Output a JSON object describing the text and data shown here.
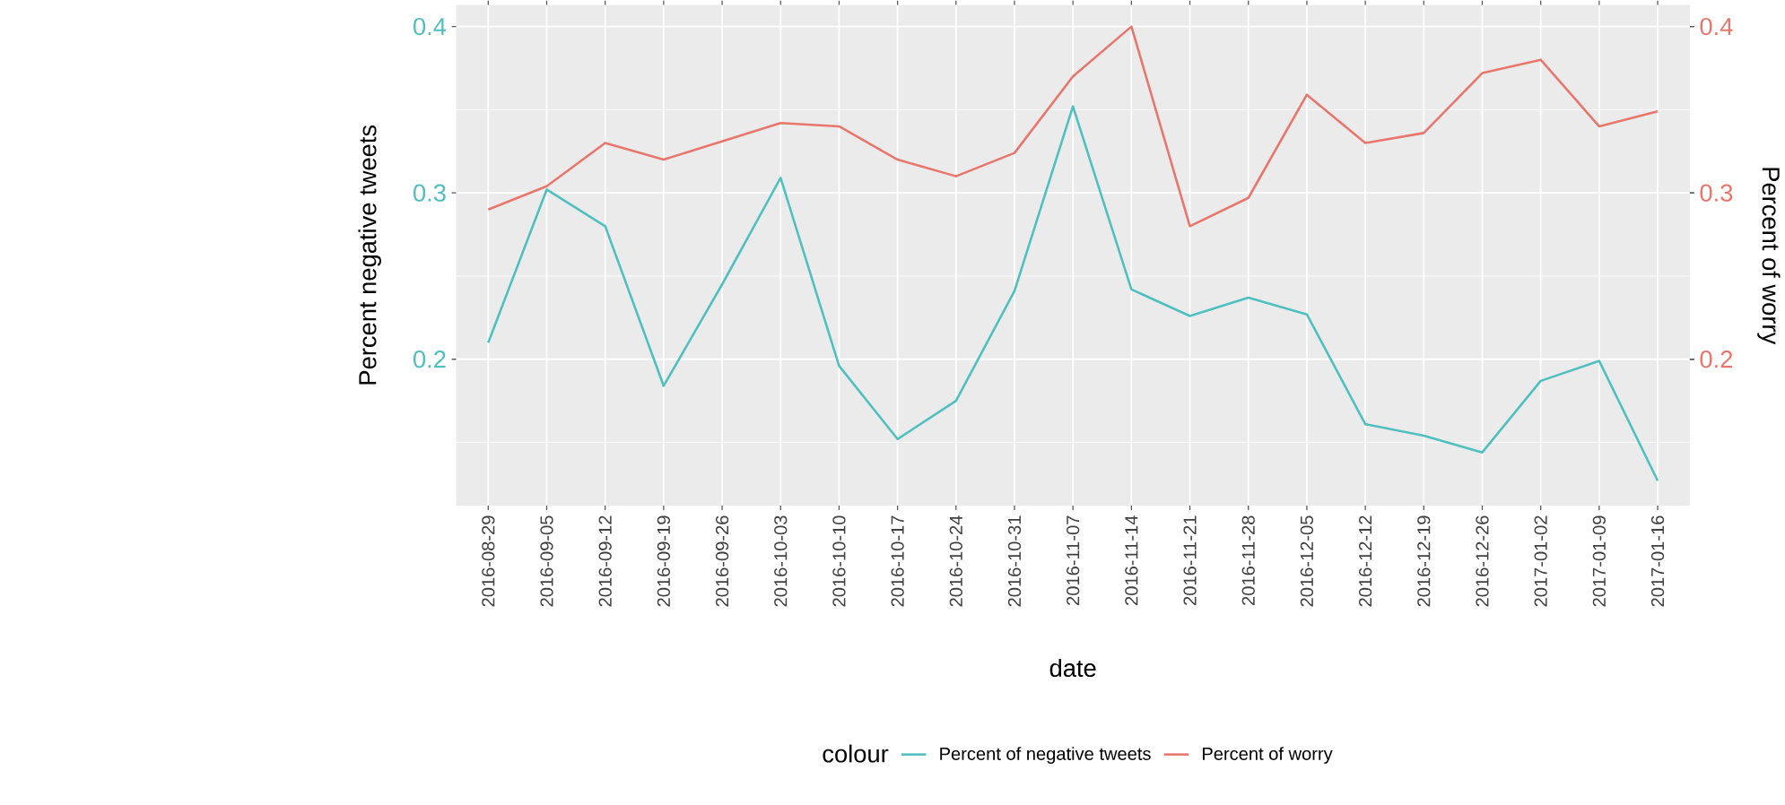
{
  "chart_data": {
    "type": "line",
    "xlabel": "date",
    "ylabel": "Percent negative tweets",
    "y2label": "Percent of worry",
    "legend_title": "colour",
    "categories": [
      "2016-08-29",
      "2016-09-05",
      "2016-09-12",
      "2016-09-19",
      "2016-09-26",
      "2016-10-03",
      "2016-10-10",
      "2016-10-17",
      "2016-10-24",
      "2016-10-31",
      "2016-11-07",
      "2016-11-14",
      "2016-11-21",
      "2016-11-28",
      "2016-12-05",
      "2016-12-12",
      "2016-12-19",
      "2016-12-26",
      "2017-01-02",
      "2017-01-09",
      "2017-01-16"
    ],
    "series": [
      {
        "name": "Percent of negative tweets",
        "color": "#4fbfbf",
        "values": [
          0.21,
          0.302,
          0.28,
          0.184,
          0.245,
          0.309,
          0.196,
          0.152,
          0.175,
          0.241,
          0.352,
          0.242,
          0.226,
          0.237,
          0.227,
          0.161,
          0.154,
          0.144,
          0.187,
          0.199,
          0.127
        ]
      },
      {
        "name": "Percent of worry",
        "color": "#e8766d",
        "axis": "y2",
        "values": [
          0.29,
          0.304,
          0.33,
          0.32,
          0.331,
          0.342,
          0.34,
          0.32,
          0.31,
          0.324,
          0.37,
          0.4,
          0.28,
          0.297,
          0.359,
          0.33,
          0.336,
          0.372,
          0.38,
          0.34,
          0.349
        ]
      }
    ],
    "ylim": [
      0.112,
      0.413
    ],
    "yticks": [
      0.2,
      0.3,
      0.4
    ],
    "y2lim": [
      0.112,
      0.413
    ],
    "y2ticks": [
      0.2,
      0.3,
      0.4
    ],
    "grid": true,
    "legend": "bottom",
    "marker": "none",
    "line_style": "solid"
  }
}
